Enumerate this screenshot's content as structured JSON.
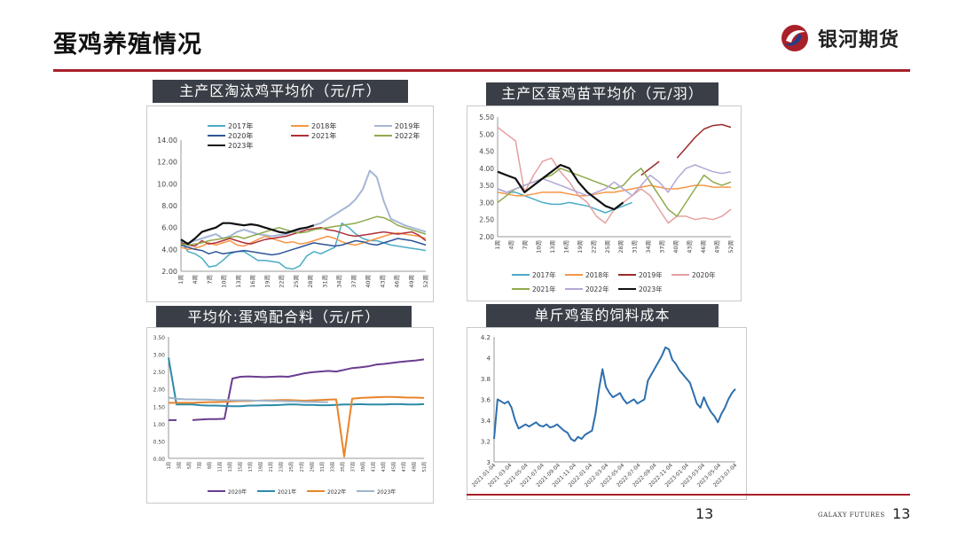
{
  "header": {
    "title": "蛋鸡养殖情况",
    "brand": "银河期货"
  },
  "footer": {
    "page_center": "13",
    "page_right": "13",
    "brand_small": "GALAXY FUTURES"
  },
  "colors": {
    "accent": "#a8202a",
    "title_bar": "#3a3f47"
  },
  "panels": {
    "p1": {
      "title": "主产区淘汰鸡平均价（元/斤）"
    },
    "p2": {
      "title": "主产区蛋鸡苗平均价（元/羽）"
    },
    "p3": {
      "title": "平均价:蛋鸡配合料（元/斤）"
    },
    "p4": {
      "title": "单斤鸡蛋的饲料成本"
    }
  },
  "chart_data": [
    {
      "id": "p1",
      "type": "line",
      "y_ticks": [
        "2.00",
        "4.00",
        "6.00",
        "8.00",
        "10.00",
        "12.00",
        "14.00"
      ],
      "ylim": [
        2,
        14
      ],
      "x_ticks": [
        "1周",
        "4周",
        "7周",
        "10周",
        "13周",
        "16周",
        "19周",
        "22周",
        "25周",
        "28周",
        "31周",
        "34周",
        "37周",
        "40周",
        "43周",
        "46周",
        "49周",
        "52周"
      ],
      "legend_position": "top-left",
      "series": [
        {
          "name": "2017年",
          "color": "#4bacc6",
          "width": 1.5,
          "values": [
            4.8,
            3.8,
            3.6,
            3.2,
            2.4,
            2.5,
            3.0,
            3.6,
            3.8,
            3.8,
            3.4,
            3.0,
            3.0,
            2.9,
            2.8,
            2.3,
            2.2,
            2.5,
            3.4,
            3.8,
            3.6,
            3.9,
            4.2,
            6.4,
            6.0,
            5.4,
            5.0,
            4.8,
            4.8,
            4.6,
            4.4,
            4.3,
            4.2,
            4.1,
            4.0,
            3.9
          ]
        },
        {
          "name": "2018年",
          "color": "#f79646",
          "width": 1.5,
          "values": [
            4.2,
            4.0,
            4.1,
            4.3,
            4.6,
            4.4,
            4.6,
            4.8,
            4.4,
            4.3,
            4.6,
            4.9,
            5.2,
            5.0,
            4.8,
            4.6,
            4.7,
            4.5,
            4.6,
            4.8,
            5.0,
            5.2,
            5.0,
            4.7,
            4.5,
            4.4,
            4.6,
            4.8,
            5.0,
            5.2,
            5.4,
            5.5,
            5.4,
            5.3,
            5.2,
            5.0
          ]
        },
        {
          "name": "2019年",
          "color": "#a6b6d6",
          "width": 2,
          "values": [
            4.4,
            4.6,
            4.8,
            5.0,
            5.2,
            5.4,
            5.0,
            5.2,
            5.6,
            5.8,
            5.6,
            5.4,
            5.3,
            5.2,
            5.3,
            5.4,
            5.6,
            5.8,
            6.0,
            6.2,
            6.4,
            6.8,
            7.2,
            7.6,
            8.0,
            8.6,
            9.5,
            11.2,
            10.6,
            8.4,
            6.8,
            6.5,
            6.2,
            6.0,
            5.8,
            5.6
          ]
        },
        {
          "name": "2020年",
          "color": "#2e5597",
          "width": 1.5,
          "values": [
            4.4,
            4.2,
            4.0,
            3.9,
            3.6,
            3.8,
            3.6,
            3.7,
            3.8,
            3.9,
            3.8,
            3.7,
            3.6,
            3.5,
            3.6,
            3.8,
            4.0,
            4.2,
            4.4,
            4.6,
            4.5,
            4.4,
            4.3,
            4.4,
            4.6,
            4.8,
            4.7,
            4.5,
            4.4,
            4.6,
            4.8,
            5.0,
            4.9,
            4.8,
            4.6,
            4.4
          ]
        },
        {
          "name": "2021年",
          "color": "#b0303a",
          "width": 1.5,
          "values": [
            4.6,
            4.4,
            4.3,
            4.8,
            4.5,
            4.6,
            4.8,
            5.0,
            4.8,
            4.6,
            4.5,
            4.7,
            4.9,
            5.0,
            5.1,
            5.2,
            5.4,
            5.6,
            5.8,
            5.9,
            6.0,
            5.8,
            5.7,
            5.5,
            5.3,
            5.2,
            5.3,
            5.4,
            5.5,
            5.6,
            5.5,
            5.4,
            5.5,
            5.6,
            5.3,
            4.8
          ]
        },
        {
          "name": "2022年",
          "color": "#8faa4b",
          "width": 1.5,
          "values": [
            4.5,
            4.4,
            4.5,
            4.6,
            4.8,
            4.9,
            5.0,
            5.1,
            5.2,
            5.0,
            5.2,
            5.4,
            5.6,
            5.8,
            6.0,
            5.8,
            5.6,
            5.5,
            5.6,
            5.8,
            5.9,
            6.0,
            6.1,
            6.2,
            6.3,
            6.4,
            6.6,
            6.8,
            7.0,
            6.9,
            6.6,
            6.2,
            6.0,
            5.8,
            5.6,
            5.4
          ]
        },
        {
          "name": "2023年",
          "color": "#111111",
          "width": 2.2,
          "values": [
            4.9,
            4.5,
            5.0,
            5.6,
            5.8,
            6.0,
            6.4,
            6.4,
            6.3,
            6.2,
            6.3,
            6.2,
            6.0,
            5.8,
            5.6,
            5.5,
            5.7,
            5.9,
            6.0,
            6.2,
            null,
            null,
            null,
            null,
            null,
            null,
            null,
            null,
            null,
            null,
            null,
            null,
            null,
            null,
            null,
            null
          ]
        }
      ]
    },
    {
      "id": "p2",
      "type": "line",
      "y_ticks": [
        "2.00",
        "2.50",
        "3.00",
        "3.50",
        "4.00",
        "4.50",
        "5.00",
        "5.50"
      ],
      "ylim": [
        2,
        5.5
      ],
      "x_ticks": [
        "1周",
        "4周",
        "7周",
        "10周",
        "13周",
        "16周",
        "19周",
        "22周",
        "25周",
        "28周",
        "31周",
        "34周",
        "37周",
        "40周",
        "43周",
        "46周",
        "49周",
        "52周"
      ],
      "legend_position": "bottom",
      "series": [
        {
          "name": "2017年",
          "color": "#4bacc6",
          "width": 1.5,
          "values": [
            3.4,
            3.3,
            3.3,
            3.2,
            3.1,
            3.0,
            2.95,
            2.95,
            3.0,
            2.95,
            2.9,
            2.8,
            2.7,
            2.8,
            2.9,
            3.0,
            null,
            null,
            null,
            null,
            null,
            null,
            null,
            null,
            null,
            null,
            null
          ]
        },
        {
          "name": "2018年",
          "color": "#f79646",
          "width": 1.5,
          "values": [
            3.3,
            3.25,
            3.2,
            3.2,
            3.25,
            3.3,
            3.3,
            3.3,
            3.25,
            3.2,
            3.2,
            3.25,
            3.3,
            3.3,
            3.35,
            3.4,
            3.45,
            3.5,
            3.45,
            3.4,
            3.4,
            3.45,
            3.5,
            3.5,
            3.45,
            3.45,
            3.45
          ]
        },
        {
          "name": "2019年",
          "color": "#9b2c2c",
          "width": 1.5,
          "values": [
            null,
            null,
            null,
            null,
            null,
            null,
            null,
            null,
            null,
            null,
            null,
            null,
            null,
            null,
            null,
            null,
            3.8,
            4.0,
            4.2,
            null,
            4.3,
            4.6,
            4.9,
            5.15,
            5.25,
            5.28,
            5.2
          ]
        },
        {
          "name": "2020年",
          "color": "#e6a0a0",
          "width": 1.5,
          "values": [
            5.2,
            5.0,
            4.8,
            3.3,
            3.8,
            4.2,
            4.3,
            3.9,
            3.6,
            3.2,
            3.0,
            2.6,
            2.4,
            2.8,
            3.0,
            3.2,
            3.4,
            3.2,
            2.8,
            2.4,
            2.6,
            2.6,
            2.5,
            2.55,
            2.5,
            2.6,
            2.8
          ]
        },
        {
          "name": "2021年",
          "color": "#8faa4b",
          "width": 1.5,
          "values": [
            3.0,
            3.2,
            3.4,
            3.5,
            3.6,
            3.7,
            3.8,
            4.0,
            3.9,
            3.8,
            3.7,
            3.6,
            3.5,
            3.4,
            3.5,
            3.8,
            4.0,
            3.6,
            3.2,
            2.8,
            2.6,
            3.0,
            3.4,
            3.8,
            3.6,
            3.5,
            3.6
          ]
        },
        {
          "name": "2022年",
          "color": "#b4a7d6",
          "width": 1.5,
          "values": [
            3.4,
            3.3,
            3.4,
            3.5,
            3.6,
            3.7,
            3.6,
            3.5,
            3.4,
            3.3,
            3.2,
            3.3,
            3.4,
            3.6,
            3.4,
            3.2,
            3.5,
            3.8,
            3.6,
            3.3,
            3.7,
            4.0,
            4.1,
            4.0,
            3.9,
            3.85,
            3.9
          ]
        },
        {
          "name": "2023年",
          "color": "#111111",
          "width": 2.2,
          "values": [
            3.9,
            3.8,
            3.7,
            3.3,
            3.5,
            3.7,
            3.9,
            4.1,
            4.0,
            3.6,
            3.3,
            3.1,
            2.9,
            2.8,
            3.0,
            null,
            null,
            null,
            null,
            null,
            null,
            null,
            null,
            null,
            null,
            null,
            null
          ]
        }
      ]
    },
    {
      "id": "p3",
      "type": "line",
      "y_ticks": [
        "0.00",
        "0.50",
        "1.00",
        "1.50",
        "2.00",
        "2.50",
        "3.00",
        "3.50"
      ],
      "ylim": [
        0,
        3.5
      ],
      "x_ticks": [
        "1周",
        "3周",
        "5周",
        "7周",
        "9周",
        "11周",
        "13周",
        "15周",
        "17周",
        "19周",
        "21周",
        "23周",
        "25周",
        "27周",
        "29周",
        "31周",
        "33周",
        "35周",
        "37周",
        "39周",
        "41周",
        "43周",
        "45周",
        "47周",
        "49周",
        "51周"
      ],
      "legend_position": "bottom",
      "series": [
        {
          "name": "2020年",
          "color": "#6a3d8f",
          "width": 2,
          "values": [
            1.1,
            1.1,
            null,
            1.1,
            1.12,
            1.13,
            1.13,
            1.14,
            2.3,
            2.35,
            2.36,
            2.35,
            2.34,
            2.35,
            2.36,
            2.35,
            2.4,
            2.45,
            2.48,
            2.5,
            2.52,
            2.5,
            2.55,
            2.6,
            2.62,
            2.65,
            2.7,
            2.72,
            2.75,
            2.78,
            2.8,
            2.82,
            2.85
          ]
        },
        {
          "name": "2021年",
          "color": "#2b8aa8",
          "width": 2,
          "values": [
            2.9,
            1.55,
            1.55,
            1.55,
            1.53,
            1.52,
            1.52,
            1.51,
            1.5,
            1.5,
            1.52,
            1.52,
            1.53,
            1.53,
            1.54,
            1.55,
            1.55,
            1.54,
            1.54,
            1.53,
            1.53,
            1.54,
            1.55,
            1.55,
            1.56,
            1.55,
            1.55,
            1.55,
            1.56,
            1.56,
            1.55,
            1.55,
            1.56
          ]
        },
        {
          "name": "2022年",
          "color": "#e8842a",
          "width": 2,
          "values": [
            1.6,
            1.6,
            1.6,
            1.6,
            1.61,
            1.62,
            1.62,
            1.63,
            1.64,
            1.65,
            1.65,
            1.66,
            1.67,
            1.67,
            1.68,
            1.68,
            1.67,
            1.66,
            1.67,
            1.68,
            1.69,
            1.7,
            0.05,
            1.72,
            1.74,
            1.75,
            1.76,
            1.77,
            1.77,
            1.76,
            1.75,
            1.75,
            1.74
          ]
        },
        {
          "name": "2023年",
          "color": "#9fb4cc",
          "width": 2,
          "values": [
            1.75,
            1.72,
            1.7,
            1.7,
            1.69,
            1.69,
            1.68,
            1.68,
            1.67,
            1.67,
            1.67,
            1.66,
            1.66,
            1.65,
            1.65,
            1.64,
            1.64,
            1.63,
            1.63,
            1.62,
            1.62,
            null,
            null,
            null,
            null,
            null,
            null,
            null,
            null,
            null,
            null,
            null,
            null
          ]
        }
      ]
    },
    {
      "id": "p4",
      "type": "line",
      "y_ticks": [
        "3",
        "3.2",
        "3.4",
        "3.6",
        "3.8",
        "4",
        "4.2"
      ],
      "ylim": [
        3,
        4.2
      ],
      "x_ticks": [
        "2021-01-04",
        "2021-03-04",
        "2021-05-04",
        "2021-07-04",
        "2021-09-04",
        "2021-11-04",
        "2022-01-04",
        "2022-03-04",
        "2022-05-04",
        "2022-07-04",
        "2022-09-04",
        "2022-11-04",
        "2023-01-04",
        "2023-03-04",
        "2023-05-04",
        "2023-07-04"
      ],
      "legend_position": "none",
      "series": [
        {
          "name": "",
          "color": "#2e6fad",
          "width": 2,
          "values": [
            3.22,
            3.6,
            3.58,
            3.56,
            3.58,
            3.52,
            3.4,
            3.32,
            3.34,
            3.36,
            3.34,
            3.36,
            3.38,
            3.35,
            3.34,
            3.36,
            3.33,
            3.34,
            3.36,
            3.33,
            3.3,
            3.28,
            3.22,
            3.2,
            3.24,
            3.22,
            3.26,
            3.28,
            3.3,
            3.46,
            3.7,
            3.89,
            3.72,
            3.66,
            3.62,
            3.64,
            3.66,
            3.6,
            3.56,
            3.58,
            3.6,
            3.56,
            3.58,
            3.6,
            3.78,
            3.84,
            3.9,
            3.96,
            4.02,
            4.1,
            4.08,
            3.98,
            3.94,
            3.88,
            3.84,
            3.8,
            3.76,
            3.66,
            3.56,
            3.52,
            3.62,
            3.54,
            3.48,
            3.44,
            3.38,
            3.46,
            3.52,
            3.6,
            3.66,
            3.7
          ]
        }
      ]
    }
  ]
}
